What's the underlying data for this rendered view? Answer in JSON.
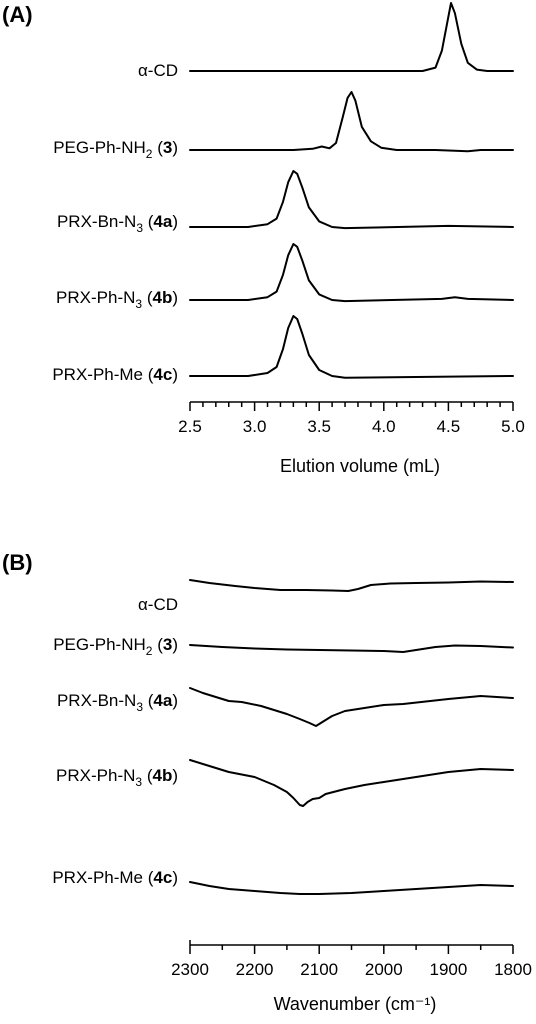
{
  "chart_data": [
    {
      "type": "line",
      "panel_label": "(A)",
      "xlabel": "Elution volume (mL)",
      "xlim": [
        2.5,
        5.0
      ],
      "xticks": [
        "2.5",
        "3.0",
        "3.5",
        "4.0",
        "4.5",
        "5.0"
      ],
      "series": [
        {
          "label_pre": "α-CD",
          "label_sub": "",
          "label_mid": "",
          "label_bold": "",
          "label_end": "",
          "x": [
            2.5,
            3.8,
            4.3,
            4.4,
            4.45,
            4.5,
            4.52,
            4.55,
            4.6,
            4.65,
            4.72,
            4.8,
            5.0
          ],
          "y": [
            0,
            0,
            0,
            0.05,
            0.3,
            0.8,
            1.0,
            0.85,
            0.4,
            0.12,
            0.02,
            0,
            0
          ]
        },
        {
          "label_pre": "PEG-Ph-NH",
          "label_sub": "2",
          "label_mid": " (",
          "label_bold": "3",
          "label_end": ")",
          "x": [
            2.5,
            3.3,
            3.45,
            3.52,
            3.58,
            3.63,
            3.68,
            3.72,
            3.75,
            3.78,
            3.83,
            3.9,
            3.98,
            4.1,
            4.4,
            4.65,
            4.75,
            5.0
          ],
          "y": [
            0,
            0,
            0.02,
            0.06,
            0.03,
            0.12,
            0.55,
            0.9,
            1.0,
            0.85,
            0.4,
            0.15,
            0.04,
            0,
            0,
            -0.02,
            0,
            0
          ]
        },
        {
          "label_pre": "PRX-Bn-N",
          "label_sub": "3",
          "label_mid": " (",
          "label_bold": "4a",
          "label_end": ")",
          "x": [
            2.5,
            2.95,
            3.1,
            3.17,
            3.22,
            3.26,
            3.3,
            3.33,
            3.37,
            3.42,
            3.5,
            3.6,
            3.7,
            4.5,
            5.0
          ],
          "y": [
            0,
            0,
            0.05,
            0.15,
            0.45,
            0.8,
            1.0,
            0.95,
            0.7,
            0.35,
            0.1,
            0,
            -0.02,
            0.02,
            0
          ]
        },
        {
          "label_pre": "PRX-Ph-N",
          "label_sub": "3",
          "label_mid": " (",
          "label_bold": "4b",
          "label_end": ")",
          "x": [
            2.5,
            2.95,
            3.1,
            3.17,
            3.22,
            3.26,
            3.3,
            3.33,
            3.37,
            3.42,
            3.5,
            3.6,
            3.7,
            4.45,
            4.55,
            4.65,
            5.0
          ],
          "y": [
            0,
            0,
            0.05,
            0.15,
            0.45,
            0.8,
            1.0,
            0.95,
            0.7,
            0.35,
            0.1,
            0,
            -0.02,
            0.02,
            0.05,
            0.02,
            0
          ]
        },
        {
          "label_pre": "PRX-Ph-Me",
          "label_sub": "",
          "label_mid": " (",
          "label_bold": "4c",
          "label_end": ")",
          "x": [
            2.5,
            2.95,
            3.1,
            3.17,
            3.22,
            3.26,
            3.3,
            3.33,
            3.37,
            3.42,
            3.5,
            3.6,
            3.7,
            5.0
          ],
          "y": [
            0,
            0,
            0.05,
            0.15,
            0.45,
            0.8,
            1.0,
            0.95,
            0.7,
            0.35,
            0.1,
            0,
            -0.03,
            0
          ]
        }
      ]
    },
    {
      "type": "line",
      "panel_label": "(B)",
      "xlabel": "Wavenumber (cm⁻¹)",
      "xlim": [
        2300,
        1800
      ],
      "xticks": [
        "2300",
        "2200",
        "2100",
        "2000",
        "1900",
        "1800"
      ],
      "series": [
        {
          "label_pre": "α-CD",
          "label_sub": "",
          "label_mid": "",
          "label_bold": "",
          "label_end": "",
          "x": [
            2300,
            2270,
            2230,
            2200,
            2160,
            2120,
            2080,
            2055,
            2040,
            2020,
            1990,
            1950,
            1900,
            1850,
            1800
          ],
          "y": [
            0,
            -0.3,
            -0.6,
            -0.8,
            -1.0,
            -1.0,
            -1.05,
            -1.1,
            -0.9,
            -0.5,
            -0.35,
            -0.3,
            -0.25,
            -0.15,
            -0.2
          ]
        },
        {
          "label_pre": "PEG-Ph-NH",
          "label_sub": "2",
          "label_mid": " (",
          "label_bold": "3",
          "label_end": ")",
          "x": [
            2300,
            2250,
            2200,
            2150,
            2100,
            2050,
            2000,
            1970,
            1950,
            1920,
            1890,
            1850,
            1800
          ],
          "y": [
            0,
            -0.2,
            -0.35,
            -0.45,
            -0.5,
            -0.55,
            -0.6,
            -0.7,
            -0.5,
            -0.2,
            -0.05,
            -0.1,
            -0.25
          ]
        },
        {
          "label_pre": "PRX-Bn-N",
          "label_sub": "3",
          "label_mid": " (",
          "label_bold": "4a",
          "label_end": ")",
          "x": [
            2300,
            2280,
            2260,
            2240,
            2220,
            2190,
            2170,
            2150,
            2130,
            2115,
            2105,
            2095,
            2080,
            2060,
            2040,
            2000,
            1970,
            1900,
            1850,
            1800
          ],
          "y": [
            0,
            -0.5,
            -0.9,
            -1.3,
            -1.4,
            -1.8,
            -2.2,
            -2.6,
            -3.1,
            -3.5,
            -3.8,
            -3.4,
            -2.8,
            -2.3,
            -2.1,
            -1.7,
            -1.6,
            -1.1,
            -0.8,
            -1.0
          ]
        },
        {
          "label_pre": "PRX-Ph-N",
          "label_sub": "3",
          "label_mid": " (",
          "label_bold": "4b",
          "label_end": ")",
          "x": [
            2300,
            2270,
            2240,
            2200,
            2170,
            2150,
            2140,
            2130,
            2125,
            2118,
            2110,
            2100,
            2090,
            2060,
            2030,
            2000,
            1950,
            1900,
            1850,
            1800
          ],
          "y": [
            0,
            -0.6,
            -1.2,
            -1.7,
            -2.5,
            -3.2,
            -3.8,
            -4.5,
            -4.6,
            -4.2,
            -3.9,
            -3.8,
            -3.4,
            -2.9,
            -2.5,
            -2.2,
            -1.7,
            -1.2,
            -0.9,
            -1.0
          ]
        },
        {
          "label_pre": "PRX-Ph-Me",
          "label_sub": "",
          "label_mid": " (",
          "label_bold": "4c",
          "label_end": ")",
          "x": [
            2300,
            2270,
            2240,
            2200,
            2160,
            2130,
            2100,
            2050,
            2000,
            1950,
            1900,
            1850,
            1800
          ],
          "y": [
            0,
            -0.4,
            -0.7,
            -0.9,
            -1.1,
            -1.2,
            -1.2,
            -1.1,
            -0.9,
            -0.7,
            -0.5,
            -0.3,
            -0.4
          ]
        }
      ]
    }
  ]
}
